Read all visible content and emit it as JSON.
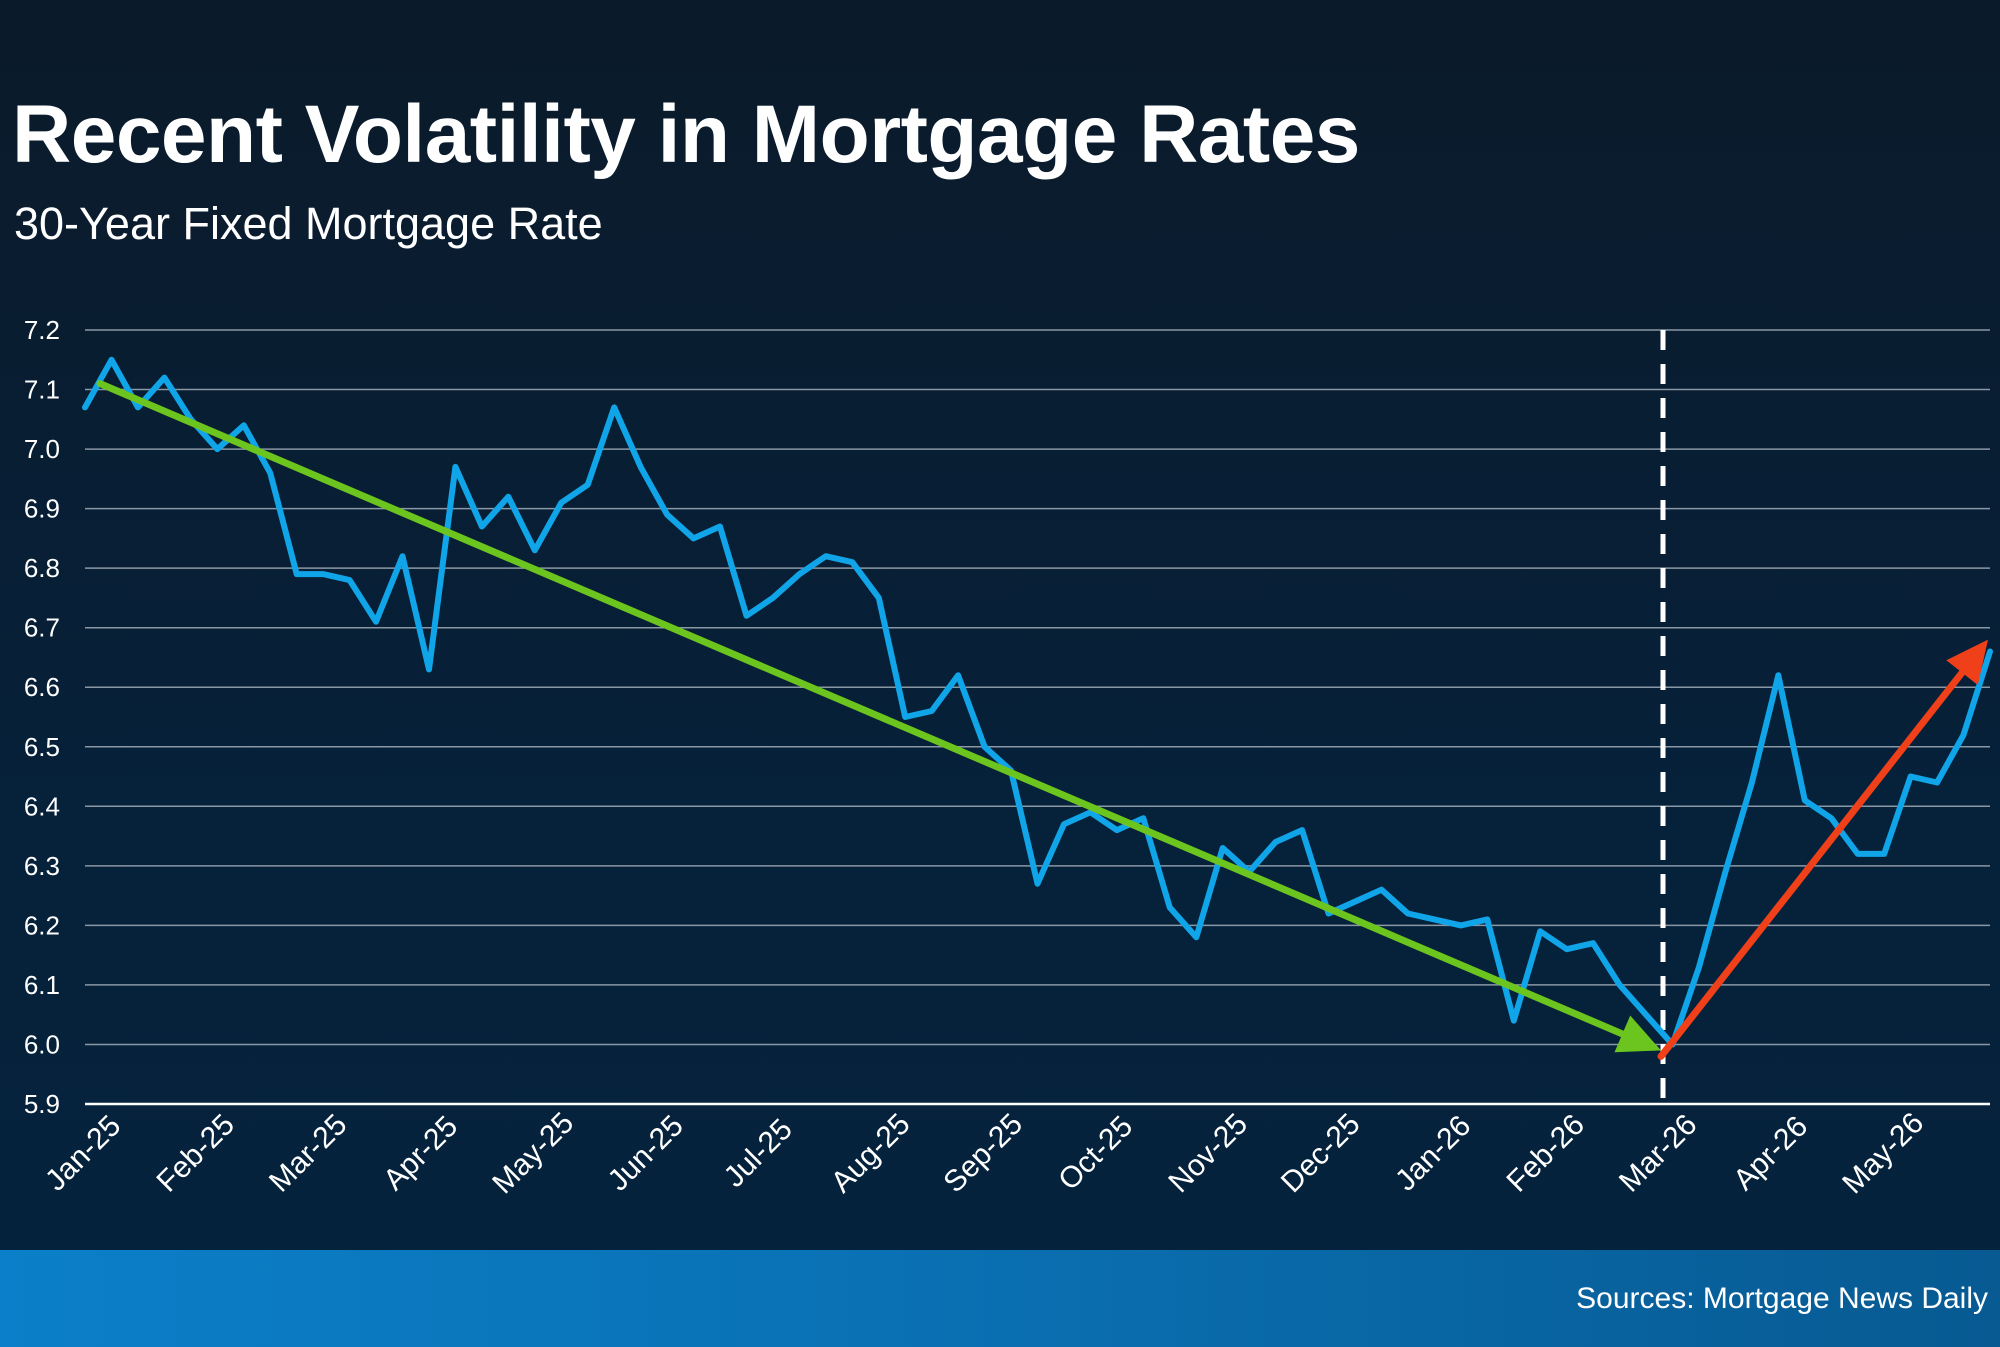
{
  "header": {
    "title": "Recent Volatility in Mortgage Rates",
    "subtitle": "30-Year Fixed Mortgage Rate"
  },
  "footer": {
    "source": "Sources: Mortgage News Daily"
  },
  "colors": {
    "series": "#10a5e8",
    "down_trend": "#6cc51f",
    "up_trend": "#f0401a",
    "marker": "#ffffff"
  },
  "chart_data": {
    "type": "line",
    "title": "Recent Volatility in Mortgage Rates",
    "subtitle": "30-Year Fixed Mortgage Rate",
    "ylim": [
      5.9,
      7.2
    ],
    "y_ticks": [
      7.2,
      7.1,
      7.0,
      6.9,
      6.8,
      6.7,
      6.6,
      6.5,
      6.4,
      6.3,
      6.2,
      6.1,
      6.0,
      5.9
    ],
    "x_tick_labels": [
      "Jan-25",
      "Feb-25",
      "Mar-25",
      "Apr-25",
      "May-25",
      "Jun-25",
      "Jul-25",
      "Aug-25",
      "Sep-25",
      "Oct-25",
      "Nov-25",
      "Dec-25",
      "Jan-26",
      "Feb-26",
      "Mar-26",
      "Apr-26",
      "May-26"
    ],
    "grid": true,
    "series": [
      {
        "values": [
          7.07,
          7.15,
          7.07,
          7.12,
          7.05,
          7.0,
          7.04,
          6.96,
          6.79,
          6.79,
          6.78,
          6.71,
          6.82,
          6.63,
          6.97,
          6.87,
          6.92,
          6.83,
          6.91,
          6.94,
          7.07,
          6.97,
          6.89,
          6.85,
          6.87,
          6.72,
          6.75,
          6.79,
          6.82,
          6.81,
          6.75,
          6.55,
          6.56,
          6.62,
          6.5,
          6.46,
          6.27,
          6.37,
          6.39,
          6.36,
          6.38,
          6.23,
          6.18,
          6.33,
          6.29,
          6.34,
          6.36,
          6.22,
          6.24,
          6.26,
          6.22,
          6.21,
          6.2,
          6.21,
          6.04,
          6.19,
          6.16,
          6.17,
          6.1,
          6.05,
          6.0,
          6.13,
          6.29,
          6.44,
          6.62,
          6.41,
          6.38,
          6.32,
          6.32,
          6.45,
          6.44,
          6.52,
          6.66
        ]
      }
    ],
    "annotations": [
      {
        "type": "trend-arrow",
        "direction": "down",
        "from": {
          "x": "Jan-25",
          "y": 7.11
        },
        "to": {
          "x": "Mar-26",
          "y": 5.99
        }
      },
      {
        "type": "trend-arrow",
        "direction": "up",
        "from": {
          "x": "Mar-26",
          "y": 5.98
        },
        "to": {
          "x": "May-26",
          "y": 6.68
        }
      },
      {
        "type": "vertical-marker",
        "style": "dashed",
        "x": "Mar-26"
      }
    ]
  }
}
